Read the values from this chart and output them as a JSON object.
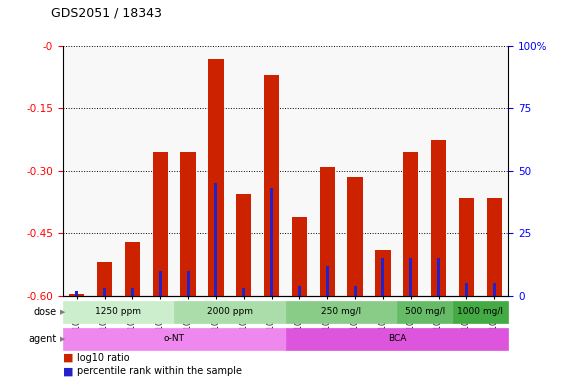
{
  "title": "GDS2051 / 18343",
  "samples": [
    "GSM105783",
    "GSM105784",
    "GSM105785",
    "GSM105786",
    "GSM105787",
    "GSM105788",
    "GSM105789",
    "GSM105790",
    "GSM105775",
    "GSM105776",
    "GSM105777",
    "GSM105778",
    "GSM105779",
    "GSM105780",
    "GSM105781",
    "GSM105782"
  ],
  "log10_ratio": [
    -0.595,
    -0.52,
    -0.47,
    -0.255,
    -0.255,
    -0.03,
    -0.355,
    -0.07,
    -0.41,
    -0.29,
    -0.315,
    -0.49,
    -0.255,
    -0.225,
    -0.365,
    -0.365
  ],
  "percentile_rank": [
    2,
    3,
    3,
    10,
    10,
    45,
    3,
    43,
    4,
    12,
    4,
    15,
    15,
    15,
    5,
    5
  ],
  "bar_color": "#cc2200",
  "blue_color": "#2222cc",
  "ylim_left": [
    -0.6,
    0.0
  ],
  "ylim_right": [
    0,
    100
  ],
  "yticks_left": [
    -0.6,
    -0.45,
    -0.3,
    -0.15,
    0.0
  ],
  "ytick_labels_left": [
    "-0.60",
    "-0.45",
    "-0.30",
    "-0.15",
    "-0"
  ],
  "yticks_right": [
    0,
    25,
    50,
    75,
    100
  ],
  "ytick_labels_right": [
    "0",
    "25",
    "50",
    "75",
    "100%"
  ],
  "dose_groups": [
    {
      "label": "1250 ppm",
      "start": 0,
      "end": 4,
      "color": "#cceecc"
    },
    {
      "label": "2000 ppm",
      "start": 4,
      "end": 8,
      "color": "#aaddaa"
    },
    {
      "label": "250 mg/l",
      "start": 8,
      "end": 12,
      "color": "#88cc88"
    },
    {
      "label": "500 mg/l",
      "start": 12,
      "end": 14,
      "color": "#66bb66"
    },
    {
      "label": "1000 mg/l",
      "start": 14,
      "end": 16,
      "color": "#44aa44"
    }
  ],
  "agent_groups": [
    {
      "label": "o-NT",
      "start": 0,
      "end": 8,
      "color": "#ee88ee"
    },
    {
      "label": "BCA",
      "start": 8,
      "end": 16,
      "color": "#dd55dd"
    }
  ],
  "legend_red": "log10 ratio",
  "legend_blue": "percentile rank within the sample"
}
